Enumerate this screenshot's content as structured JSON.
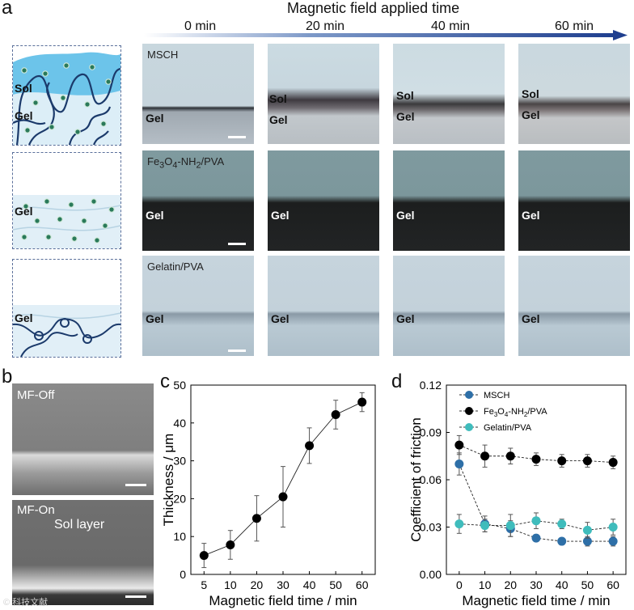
{
  "panel_labels": {
    "a": "a",
    "b": "b",
    "c": "c",
    "d": "d"
  },
  "header": {
    "title": "Magnetic field applied time",
    "times": [
      "0 min",
      "20 min",
      "40 min",
      "60 min"
    ]
  },
  "rows": [
    {
      "sample": "MSCH",
      "schematic_labels": [
        "Sol",
        "Gel"
      ],
      "photo_labels": [
        [
          "Gel"
        ],
        [
          "Sol",
          "Gel"
        ],
        [
          "Sol",
          "Gel"
        ],
        [
          "Sol",
          "Gel"
        ]
      ]
    },
    {
      "sample_prefix": "Fe",
      "sample_sub1": "3",
      "sample_mid": "O",
      "sample_sub2": "4",
      "sample_suffix": "-NH",
      "sample_sub3": "2",
      "sample_end": "/PVA",
      "schematic_labels": [
        "Gel"
      ],
      "photo_labels": [
        [
          "Gel"
        ],
        [
          "Gel"
        ],
        [
          "Gel"
        ],
        [
          "Gel"
        ]
      ]
    },
    {
      "sample": "Gelatin/PVA",
      "schematic_labels": [
        "Gel"
      ],
      "photo_labels": [
        [
          "Gel"
        ],
        [
          "Gel"
        ],
        [
          "Gel"
        ],
        [
          "Gel"
        ]
      ]
    }
  ],
  "sem": {
    "top": "MF-Off",
    "bottom": "MF-On",
    "layer": "Sol layer"
  },
  "watermark": "© 科技文献",
  "chart_data": [
    {
      "type": "line",
      "panel": "c",
      "title": "",
      "xlabel": "Magnetic field time / min",
      "ylabel": "Thickness / μm",
      "categories": [
        "5",
        "10",
        "20",
        "30",
        "40",
        "50",
        "60"
      ],
      "yticks": [
        "0",
        "10",
        "20",
        "30",
        "40",
        "50"
      ],
      "ylim": [
        0,
        50
      ],
      "series": [
        {
          "name": "Thickness",
          "values": [
            5,
            7.8,
            14.8,
            20.5,
            34,
            42.2,
            45.5
          ],
          "errors": [
            3.2,
            3.8,
            6,
            8,
            4.7,
            3.8,
            2.5
          ],
          "color": "#000000"
        }
      ]
    },
    {
      "type": "line",
      "panel": "d",
      "title": "",
      "xlabel": "Magnetic field time / min",
      "ylabel": "Coefficient of friction",
      "categories": [
        "0",
        "10",
        "20",
        "30",
        "40",
        "50",
        "60"
      ],
      "yticks": [
        "0.00",
        "0.03",
        "0.06",
        "0.09",
        "0.12"
      ],
      "ylim": [
        0,
        0.12
      ],
      "legend_position": "top-left",
      "series": [
        {
          "name": "MSCH",
          "values": [
            0.07,
            0.032,
            0.029,
            0.023,
            0.021,
            0.021,
            0.021
          ],
          "errors": [
            0.007,
            0.005,
            0.005,
            0.002,
            0.002,
            0.003,
            0.003
          ],
          "color": "#2e6fa7"
        },
        {
          "name_prefix": "Fe",
          "name_sub1": "3",
          "name_mid": "O",
          "name_sub2": "4",
          "name_suffix": "-NH",
          "name_sub3": "2",
          "name_end": "/PVA",
          "values": [
            0.082,
            0.075,
            0.075,
            0.073,
            0.072,
            0.072,
            0.071
          ],
          "errors": [
            0.006,
            0.007,
            0.005,
            0.004,
            0.004,
            0.004,
            0.004
          ],
          "color": "#000000"
        },
        {
          "name": "Gelatin/PVA",
          "values": [
            0.032,
            0.031,
            0.031,
            0.034,
            0.032,
            0.028,
            0.03
          ],
          "errors": [
            0.006,
            0.004,
            0.007,
            0.005,
            0.003,
            0.005,
            0.005
          ],
          "color": "#3fbcbc"
        }
      ]
    }
  ]
}
